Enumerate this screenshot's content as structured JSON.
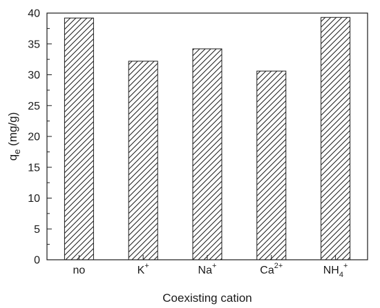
{
  "chart_data": {
    "type": "bar",
    "categories": [
      {
        "base": "no",
        "sub": "",
        "sup": ""
      },
      {
        "base": "K",
        "sub": "",
        "sup": "+"
      },
      {
        "base": "Na",
        "sub": "",
        "sup": "+"
      },
      {
        "base": "Ca",
        "sub": "",
        "sup": "2+"
      },
      {
        "base": "NH",
        "sub": "4",
        "sup": "+"
      }
    ],
    "values": [
      39.2,
      32.2,
      34.2,
      30.6,
      39.3
    ],
    "xlabel": "Coexisting cation",
    "ylabel": {
      "base": "q",
      "sub": "e",
      "rest": " (mg/g)"
    },
    "ylim": [
      0,
      40
    ],
    "yticks": [
      0,
      5,
      10,
      15,
      20,
      25,
      30,
      35,
      40
    ],
    "bar_fill": "hatched",
    "grid": false,
    "colors": {
      "axis": "#1a1a1a",
      "bar_stroke": "#1a1a1a",
      "hatch": "#1a1a1a",
      "background": "#ffffff"
    }
  }
}
